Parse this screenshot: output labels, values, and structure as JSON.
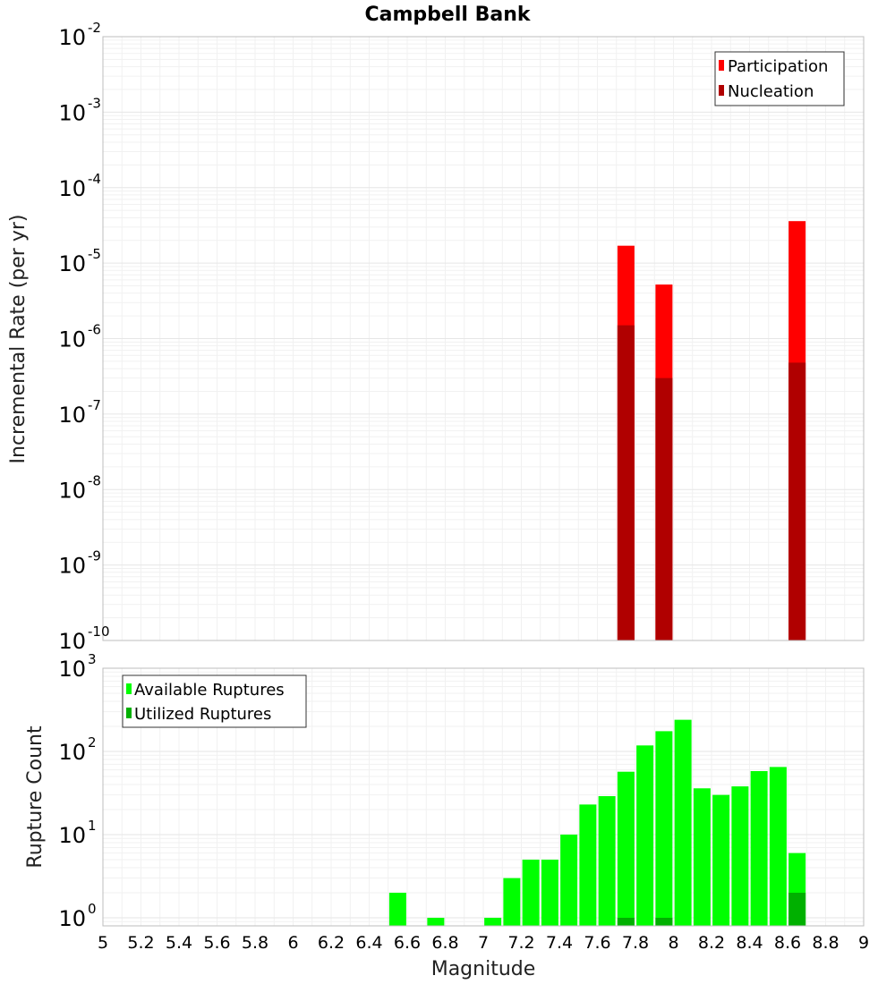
{
  "chart_data": [
    {
      "type": "bar",
      "title": "Campbell Bank",
      "xlabel": "",
      "ylabel": "Incremental Rate (per yr)",
      "yscale": "log",
      "ylim": [
        1e-10,
        0.01
      ],
      "xlim": [
        5,
        9
      ],
      "grid": true,
      "legend_position": "top-right",
      "y_tick_labels": [
        {
          "base": "10",
          "exp": "-10",
          "value": 1e-10
        },
        {
          "base": "10",
          "exp": "-9",
          "value": 1e-09
        },
        {
          "base": "10",
          "exp": "-8",
          "value": 1e-08
        },
        {
          "base": "10",
          "exp": "-7",
          "value": 1e-07
        },
        {
          "base": "10",
          "exp": "-6",
          "value": 1e-06
        },
        {
          "base": "10",
          "exp": "-5",
          "value": 1e-05
        },
        {
          "base": "10",
          "exp": "-4",
          "value": 0.0001
        },
        {
          "base": "10",
          "exp": "-3",
          "value": 0.001
        },
        {
          "base": "10",
          "exp": "-2",
          "value": 0.01
        }
      ],
      "series": [
        {
          "name": "Participation",
          "color": "#ff0000",
          "x": [
            7.75,
            7.95,
            8.65
          ],
          "values": [
            1.7e-05,
            5.2e-06,
            3.6e-05
          ]
        },
        {
          "name": "Nucleation",
          "color": "#b00000",
          "x": [
            7.75,
            7.95,
            8.65
          ],
          "values": [
            1.5e-06,
            3e-07,
            4.8e-07
          ]
        }
      ]
    },
    {
      "type": "bar",
      "title": "",
      "xlabel": "Magnitude",
      "ylabel": "Rupture Count",
      "yscale": "log",
      "ylim": [
        0.8,
        1000
      ],
      "xlim": [
        5,
        9
      ],
      "grid": true,
      "legend_position": "top-left",
      "x_tick_labels": [
        "5",
        "5.2",
        "5.4",
        "5.6",
        "5.8",
        "6",
        "6.2",
        "6.4",
        "6.6",
        "6.8",
        "7",
        "7.2",
        "7.4",
        "7.6",
        "7.8",
        "8",
        "8.2",
        "8.4",
        "8.6",
        "8.8",
        "9"
      ],
      "y_tick_labels": [
        {
          "base": "10",
          "exp": "0",
          "value": 1
        },
        {
          "base": "10",
          "exp": "1",
          "value": 10
        },
        {
          "base": "10",
          "exp": "2",
          "value": 100
        },
        {
          "base": "10",
          "exp": "3",
          "value": 1000
        }
      ],
      "series": [
        {
          "name": "Available Ruptures",
          "color": "#00ff00",
          "x": [
            6.55,
            6.75,
            7.05,
            7.15,
            7.25,
            7.35,
            7.45,
            7.55,
            7.65,
            7.75,
            7.85,
            7.95,
            8.05,
            8.15,
            8.25,
            8.35,
            8.45,
            8.55,
            8.65
          ],
          "values": [
            2,
            1,
            1,
            3,
            5,
            5,
            10,
            23,
            29,
            57,
            118,
            175,
            240,
            36,
            30,
            38,
            58,
            65,
            6
          ]
        },
        {
          "name": "Utilized Ruptures",
          "color": "#00b000",
          "x": [
            7.75,
            7.95,
            8.65
          ],
          "values": [
            1,
            1,
            2
          ]
        }
      ]
    }
  ]
}
